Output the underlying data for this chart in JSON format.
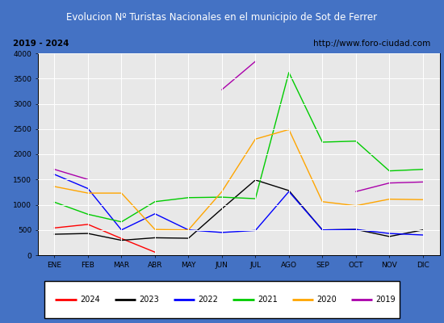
{
  "title": "Evolucion Nº Turistas Nacionales en el municipio de Sot de Ferrer",
  "subtitle_left": "2019 - 2024",
  "subtitle_right": "http://www.foro-ciudad.com",
  "months": [
    "ENE",
    "FEB",
    "MAR",
    "ABR",
    "MAY",
    "JUN",
    "JUL",
    "AGO",
    "SEP",
    "OCT",
    "NOV",
    "DIC"
  ],
  "series": {
    "2024": [
      540,
      610,
      330,
      60,
      null,
      null,
      null,
      null,
      null,
      null,
      null,
      null
    ],
    "2023": [
      415,
      430,
      295,
      345,
      335,
      920,
      1490,
      1280,
      500,
      510,
      370,
      500
    ],
    "2022": [
      1600,
      1320,
      500,
      820,
      500,
      450,
      490,
      1260,
      500,
      510,
      430,
      400
    ],
    "2021": [
      1050,
      810,
      660,
      1060,
      1140,
      1150,
      1120,
      3620,
      2240,
      2260,
      1670,
      1700
    ],
    "2020": [
      1360,
      1230,
      1230,
      510,
      500,
      1260,
      2300,
      2490,
      1060,
      980,
      1110,
      1100
    ],
    "2019": [
      1700,
      1500,
      null,
      null,
      null,
      3280,
      3840,
      null,
      null,
      1260,
      1430,
      1450
    ]
  },
  "colors": {
    "2024": "#ff0000",
    "2023": "#000000",
    "2022": "#0000ff",
    "2021": "#00cc00",
    "2020": "#ffa500",
    "2019": "#aa00aa"
  },
  "ylim": [
    0,
    4000
  ],
  "yticks": [
    0,
    500,
    1000,
    1500,
    2000,
    2500,
    3000,
    3500,
    4000
  ],
  "title_bg": "#4472c4",
  "title_color": "#ffffff",
  "subtitle_bg": "#d3d3d3",
  "plot_bg": "#e8e8e8",
  "grid_color": "#ffffff",
  "outer_bg": "#4472c4"
}
